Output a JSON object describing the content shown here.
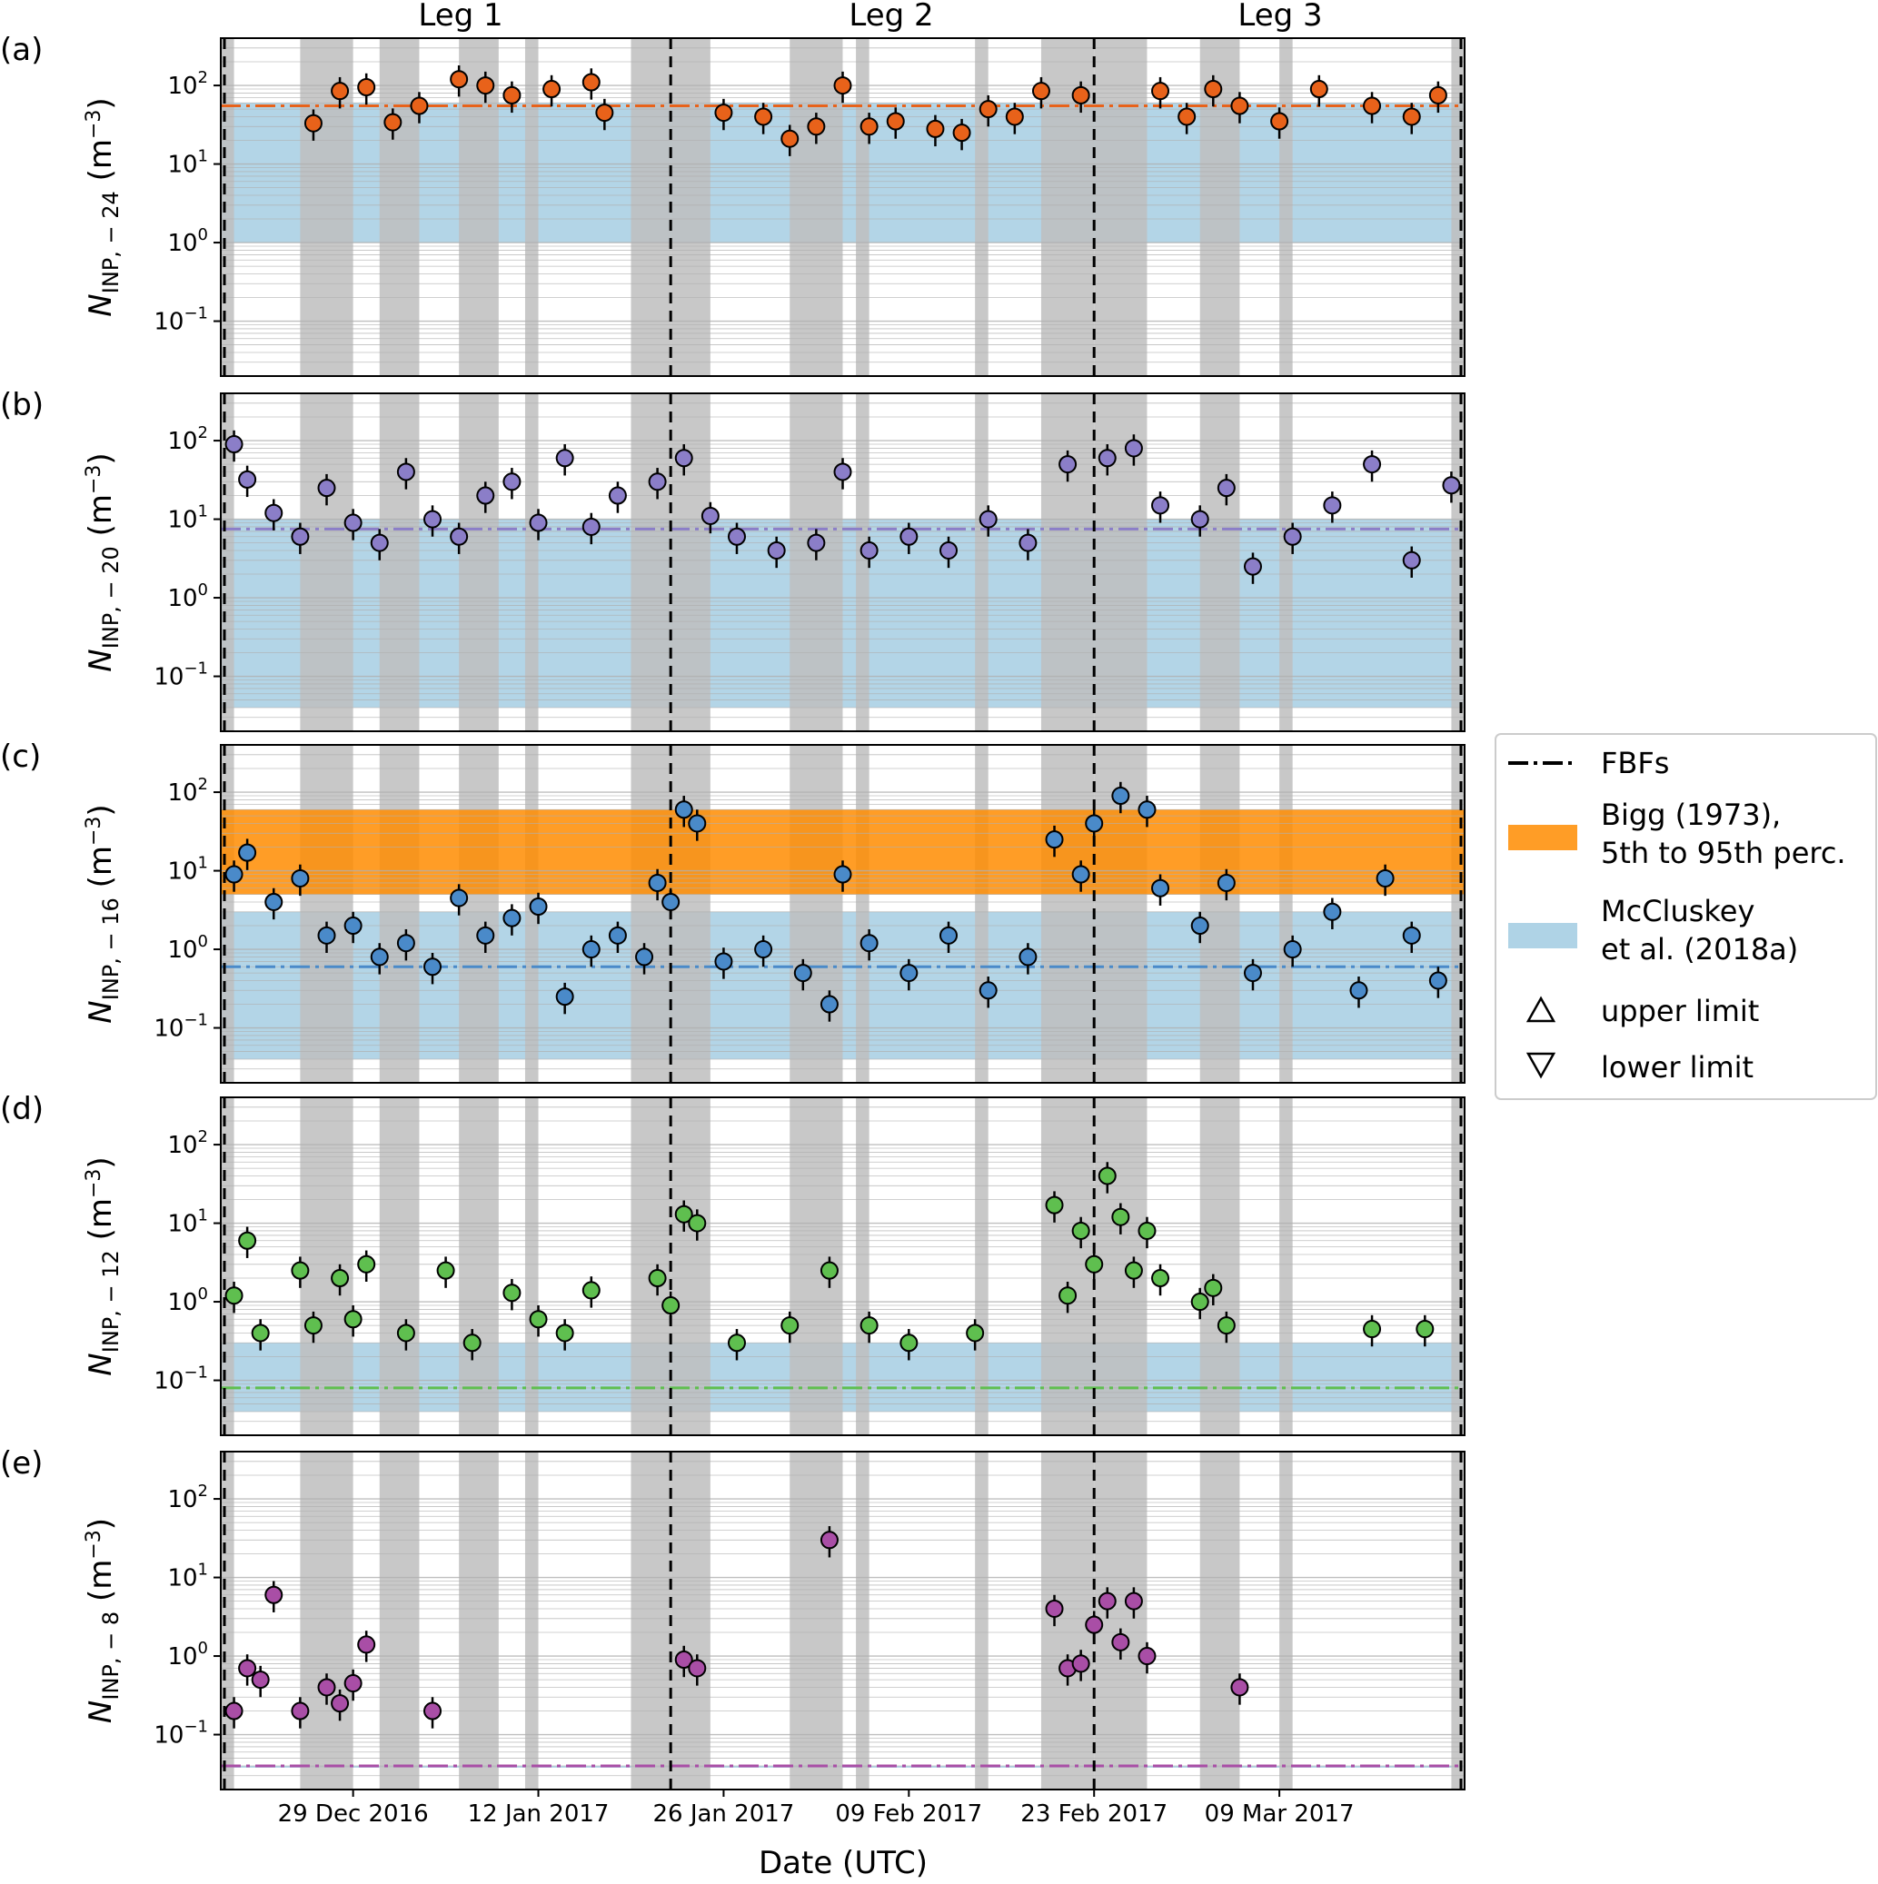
{
  "chart_data": {
    "type": "scatter",
    "xlabel": "Date (UTC)",
    "x_ticks": [
      "29 Dec 2016",
      "12 Jan 2017",
      "26 Jan 2017",
      "09 Feb 2017",
      "23 Feb 2017",
      "09 Mar 2017"
    ],
    "x_range": [
      "2016-12-19",
      "2017-03-23"
    ],
    "y_scale": "log",
    "ylim": [
      0.02,
      400
    ],
    "y_ticks": [
      "10^-1",
      "10^0",
      "10^1",
      "10^2"
    ],
    "leg_labels": [
      "Leg 1",
      "Leg 2",
      "Leg 3"
    ],
    "leg_boundaries": [
      "2017-01-22",
      "2017-02-23"
    ],
    "legend": {
      "fbfs": "FBFs",
      "bigg": [
        "Bigg (1973),",
        "5th to 95th perc."
      ],
      "mccluskey": [
        "McCluskey",
        "et al. (2018a)"
      ],
      "upper": "upper limit",
      "lower": "lower limit",
      "colors": {
        "bigg": "#ff8c00",
        "mccluskey": "#a6cee3"
      }
    },
    "panels": [
      {
        "label": "(a)",
        "ylabel": "N_INP, -24 (m^-3)",
        "temperature": "-24",
        "color": "#e8621a",
        "mccluskey_range": [
          1,
          60
        ],
        "fbf": 55,
        "series": [
          {
            "date": "2016-12-26",
            "value": 33
          },
          {
            "date": "2016-12-28",
            "value": 85
          },
          {
            "date": "2016-12-30",
            "value": 95
          },
          {
            "date": "2017-01-01",
            "value": 34
          },
          {
            "date": "2017-01-03",
            "value": 55
          },
          {
            "date": "2017-01-06",
            "value": 120
          },
          {
            "date": "2017-01-08",
            "value": 100
          },
          {
            "date": "2017-01-10",
            "value": 75
          },
          {
            "date": "2017-01-13",
            "value": 90
          },
          {
            "date": "2017-01-16",
            "value": 110
          },
          {
            "date": "2017-01-17",
            "value": 45
          },
          {
            "date": "2017-01-26",
            "value": 45
          },
          {
            "date": "2017-01-29",
            "value": 40
          },
          {
            "date": "2017-01-31",
            "value": 21
          },
          {
            "date": "2017-02-02",
            "value": 30
          },
          {
            "date": "2017-02-04",
            "value": 100
          },
          {
            "date": "2017-02-06",
            "value": 30
          },
          {
            "date": "2017-02-08",
            "value": 35
          },
          {
            "date": "2017-02-11",
            "value": 28
          },
          {
            "date": "2017-02-13",
            "value": 25
          },
          {
            "date": "2017-02-15",
            "value": 50
          },
          {
            "date": "2017-02-17",
            "value": 40
          },
          {
            "date": "2017-02-19",
            "value": 85
          },
          {
            "date": "2017-02-22",
            "value": 75
          },
          {
            "date": "2017-02-28",
            "value": 85
          },
          {
            "date": "2017-03-02",
            "value": 40
          },
          {
            "date": "2017-03-04",
            "value": 90
          },
          {
            "date": "2017-03-06",
            "value": 55
          },
          {
            "date": "2017-03-09",
            "value": 35
          },
          {
            "date": "2017-03-12",
            "value": 90
          },
          {
            "date": "2017-03-16",
            "value": 55
          },
          {
            "date": "2017-03-19",
            "value": 40
          },
          {
            "date": "2017-03-21",
            "value": 75
          }
        ]
      },
      {
        "label": "(b)",
        "ylabel": "N_INP, -20 (m^-3)",
        "temperature": "-20",
        "color": "#8b7ec8",
        "mccluskey_range": [
          0.04,
          10
        ],
        "fbf": 7.5,
        "series": [
          {
            "date": "2016-12-20",
            "value": 90
          },
          {
            "date": "2016-12-21",
            "value": 32
          },
          {
            "date": "2016-12-23",
            "value": 12
          },
          {
            "date": "2016-12-25",
            "value": 6
          },
          {
            "date": "2016-12-27",
            "value": 25
          },
          {
            "date": "2016-12-29",
            "value": 9
          },
          {
            "date": "2016-12-31",
            "value": 5
          },
          {
            "date": "2017-01-02",
            "value": 40
          },
          {
            "date": "2017-01-04",
            "value": 10
          },
          {
            "date": "2017-01-06",
            "value": 6
          },
          {
            "date": "2017-01-08",
            "value": 20
          },
          {
            "date": "2017-01-10",
            "value": 30
          },
          {
            "date": "2017-01-12",
            "value": 9
          },
          {
            "date": "2017-01-14",
            "value": 60
          },
          {
            "date": "2017-01-16",
            "value": 8
          },
          {
            "date": "2017-01-18",
            "value": 20
          },
          {
            "date": "2017-01-21",
            "value": 30
          },
          {
            "date": "2017-01-23",
            "value": 60
          },
          {
            "date": "2017-01-25",
            "value": 11
          },
          {
            "date": "2017-01-27",
            "value": 6
          },
          {
            "date": "2017-01-30",
            "value": 4
          },
          {
            "date": "2017-02-02",
            "value": 5
          },
          {
            "date": "2017-02-04",
            "value": 40
          },
          {
            "date": "2017-02-06",
            "value": 4
          },
          {
            "date": "2017-02-09",
            "value": 6
          },
          {
            "date": "2017-02-12",
            "value": 4
          },
          {
            "date": "2017-02-15",
            "value": 10
          },
          {
            "date": "2017-02-18",
            "value": 5
          },
          {
            "date": "2017-02-21",
            "value": 50
          },
          {
            "date": "2017-02-24",
            "value": 60
          },
          {
            "date": "2017-02-26",
            "value": 80
          },
          {
            "date": "2017-02-28",
            "value": 15
          },
          {
            "date": "2017-03-03",
            "value": 10
          },
          {
            "date": "2017-03-05",
            "value": 25
          },
          {
            "date": "2017-03-07",
            "value": 2.5
          },
          {
            "date": "2017-03-10",
            "value": 6
          },
          {
            "date": "2017-03-13",
            "value": 15
          },
          {
            "date": "2017-03-16",
            "value": 50
          },
          {
            "date": "2017-03-19",
            "value": 3
          },
          {
            "date": "2017-03-22",
            "value": 27
          }
        ]
      },
      {
        "label": "(c)",
        "ylabel": "N_INP, -16 (m^-3)",
        "temperature": "-16",
        "color": "#4a8ac9",
        "mccluskey_range": [
          0.04,
          3
        ],
        "bigg_range": [
          5,
          60
        ],
        "fbf": 0.6,
        "series": [
          {
            "date": "2016-12-20",
            "value": 9
          },
          {
            "date": "2016-12-21",
            "value": 17
          },
          {
            "date": "2016-12-23",
            "value": 4
          },
          {
            "date": "2016-12-25",
            "value": 8
          },
          {
            "date": "2016-12-27",
            "value": 1.5
          },
          {
            "date": "2016-12-29",
            "value": 2
          },
          {
            "date": "2016-12-31",
            "value": 0.8
          },
          {
            "date": "2017-01-02",
            "value": 1.2
          },
          {
            "date": "2017-01-04",
            "value": 0.6
          },
          {
            "date": "2017-01-06",
            "value": 4.5
          },
          {
            "date": "2017-01-08",
            "value": 1.5
          },
          {
            "date": "2017-01-10",
            "value": 2.5
          },
          {
            "date": "2017-01-12",
            "value": 3.5
          },
          {
            "date": "2017-01-14",
            "value": 0.25
          },
          {
            "date": "2017-01-16",
            "value": 1
          },
          {
            "date": "2017-01-18",
            "value": 1.5
          },
          {
            "date": "2017-01-20",
            "value": 0.8
          },
          {
            "date": "2017-01-21",
            "value": 7
          },
          {
            "date": "2017-01-22",
            "value": 4
          },
          {
            "date": "2017-01-23",
            "value": 60
          },
          {
            "date": "2017-01-24",
            "value": 40
          },
          {
            "date": "2017-01-26",
            "value": 0.7
          },
          {
            "date": "2017-01-29",
            "value": 1
          },
          {
            "date": "2017-02-01",
            "value": 0.5
          },
          {
            "date": "2017-02-03",
            "value": 0.2
          },
          {
            "date": "2017-02-04",
            "value": 9
          },
          {
            "date": "2017-02-06",
            "value": 1.2
          },
          {
            "date": "2017-02-09",
            "value": 0.5
          },
          {
            "date": "2017-02-12",
            "value": 1.5
          },
          {
            "date": "2017-02-15",
            "value": 0.3
          },
          {
            "date": "2017-02-18",
            "value": 0.8
          },
          {
            "date": "2017-02-20",
            "value": 25
          },
          {
            "date": "2017-02-22",
            "value": 9
          },
          {
            "date": "2017-02-23",
            "value": 40
          },
          {
            "date": "2017-02-25",
            "value": 90
          },
          {
            "date": "2017-02-27",
            "value": 60
          },
          {
            "date": "2017-02-28",
            "value": 6
          },
          {
            "date": "2017-03-03",
            "value": 2
          },
          {
            "date": "2017-03-05",
            "value": 7
          },
          {
            "date": "2017-03-07",
            "value": 0.5
          },
          {
            "date": "2017-03-10",
            "value": 1
          },
          {
            "date": "2017-03-13",
            "value": 3
          },
          {
            "date": "2017-03-15",
            "value": 0.3
          },
          {
            "date": "2017-03-17",
            "value": 8
          },
          {
            "date": "2017-03-19",
            "value": 1.5
          },
          {
            "date": "2017-03-21",
            "value": 0.4
          }
        ]
      },
      {
        "label": "(d)",
        "ylabel": "N_INP, -12 (m^-3)",
        "temperature": "-12",
        "color": "#5fbf4f",
        "mccluskey_range": [
          0.04,
          0.3
        ],
        "fbf": 0.08,
        "series": [
          {
            "date": "2016-12-20",
            "value": 1.2
          },
          {
            "date": "2016-12-21",
            "value": 6
          },
          {
            "date": "2016-12-22",
            "value": 0.4
          },
          {
            "date": "2016-12-25",
            "value": 2.5
          },
          {
            "date": "2016-12-26",
            "value": 0.5
          },
          {
            "date": "2016-12-28",
            "value": 2
          },
          {
            "date": "2016-12-29",
            "value": 0.6
          },
          {
            "date": "2016-12-30",
            "value": 3
          },
          {
            "date": "2017-01-02",
            "value": 0.4
          },
          {
            "date": "2017-01-05",
            "value": 2.5
          },
          {
            "date": "2017-01-07",
            "value": 0.3
          },
          {
            "date": "2017-01-10",
            "value": 1.3
          },
          {
            "date": "2017-01-12",
            "value": 0.6
          },
          {
            "date": "2017-01-14",
            "value": 0.4
          },
          {
            "date": "2017-01-16",
            "value": 1.4
          },
          {
            "date": "2017-01-21",
            "value": 2
          },
          {
            "date": "2017-01-22",
            "value": 0.9
          },
          {
            "date": "2017-01-23",
            "value": 13
          },
          {
            "date": "2017-01-24",
            "value": 10
          },
          {
            "date": "2017-01-27",
            "value": 0.3
          },
          {
            "date": "2017-01-31",
            "value": 0.5
          },
          {
            "date": "2017-02-03",
            "value": 2.5
          },
          {
            "date": "2017-02-06",
            "value": 0.5
          },
          {
            "date": "2017-02-09",
            "value": 0.3
          },
          {
            "date": "2017-02-14",
            "value": 0.4
          },
          {
            "date": "2017-02-20",
            "value": 17
          },
          {
            "date": "2017-02-21",
            "value": 1.2
          },
          {
            "date": "2017-02-22",
            "value": 8
          },
          {
            "date": "2017-02-23",
            "value": 3
          },
          {
            "date": "2017-02-24",
            "value": 40
          },
          {
            "date": "2017-02-25",
            "value": 12
          },
          {
            "date": "2017-02-26",
            "value": 2.5
          },
          {
            "date": "2017-02-27",
            "value": 8
          },
          {
            "date": "2017-02-28",
            "value": 2
          },
          {
            "date": "2017-03-03",
            "value": 1
          },
          {
            "date": "2017-03-04",
            "value": 1.5
          },
          {
            "date": "2017-03-05",
            "value": 0.5
          },
          {
            "date": "2017-03-16",
            "value": 0.45
          },
          {
            "date": "2017-03-20",
            "value": 0.45
          }
        ]
      },
      {
        "label": "(e)",
        "ylabel": "N_INP, -8 (m^-3)",
        "temperature": "-8",
        "color": "#a94ea6",
        "mccluskey_range": [
          0.04,
          0.04
        ],
        "fbf": 0.04,
        "series": [
          {
            "date": "2016-12-20",
            "value": 0.2
          },
          {
            "date": "2016-12-21",
            "value": 0.7
          },
          {
            "date": "2016-12-22",
            "value": 0.5
          },
          {
            "date": "2016-12-23",
            "value": 6
          },
          {
            "date": "2016-12-25",
            "value": 0.2
          },
          {
            "date": "2016-12-27",
            "value": 0.4
          },
          {
            "date": "2016-12-28",
            "value": 0.25
          },
          {
            "date": "2016-12-29",
            "value": 0.45
          },
          {
            "date": "2016-12-30",
            "value": 1.4
          },
          {
            "date": "2017-01-04",
            "value": 0.2
          },
          {
            "date": "2017-01-23",
            "value": 0.9
          },
          {
            "date": "2017-01-24",
            "value": 0.7
          },
          {
            "date": "2017-02-03",
            "value": 30
          },
          {
            "date": "2017-02-20",
            "value": 4
          },
          {
            "date": "2017-02-21",
            "value": 0.7
          },
          {
            "date": "2017-02-22",
            "value": 0.8
          },
          {
            "date": "2017-02-23",
            "value": 2.5
          },
          {
            "date": "2017-02-24",
            "value": 5
          },
          {
            "date": "2017-02-25",
            "value": 1.5
          },
          {
            "date": "2017-02-26",
            "value": 5
          },
          {
            "date": "2017-02-27",
            "value": 1
          },
          {
            "date": "2017-03-06",
            "value": 0.4
          }
        ]
      }
    ],
    "grid": true
  },
  "colors": {
    "shade": "#bebebe",
    "black": "#000000"
  }
}
